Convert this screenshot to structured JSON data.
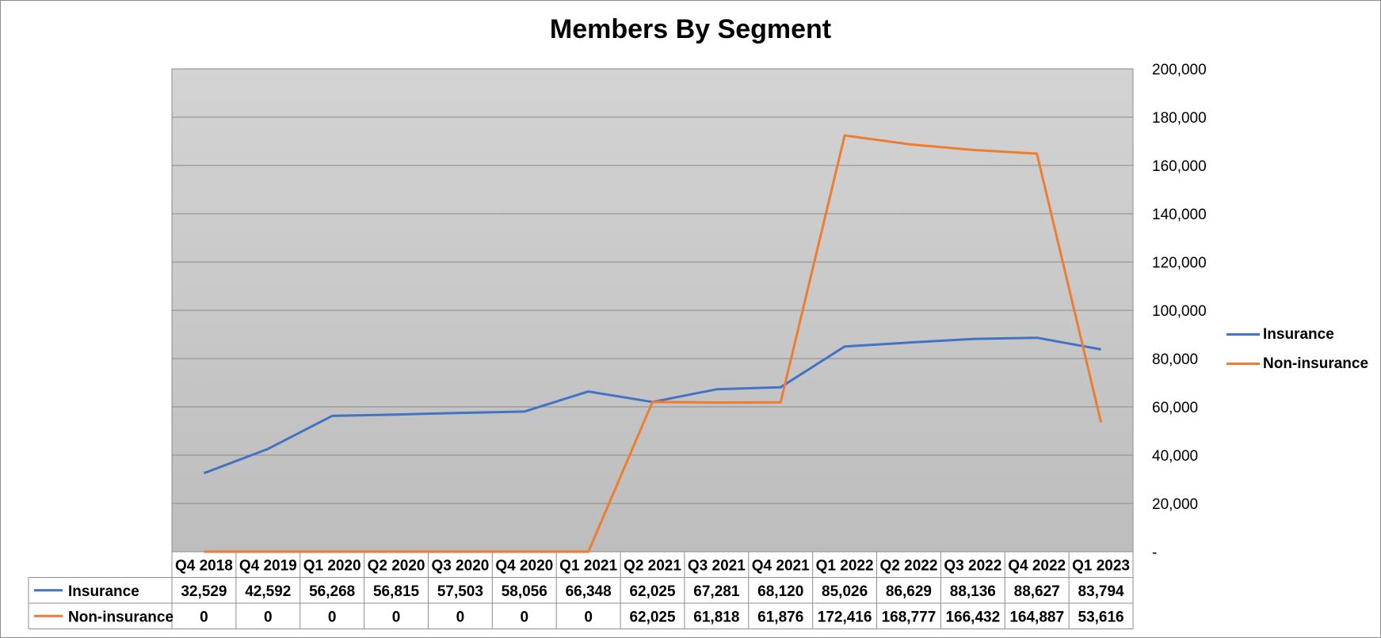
{
  "chart_data": {
    "type": "line",
    "title": "Members By Segment",
    "categories": [
      "Q4 2018",
      "Q4 2019",
      "Q1 2020",
      "Q2 2020",
      "Q3 2020",
      "Q4 2020",
      "Q1 2021",
      "Q2 2021",
      "Q3 2021",
      "Q4 2021",
      "Q1 2022",
      "Q2 2022",
      "Q3 2022",
      "Q4 2022",
      "Q1 2023"
    ],
    "series": [
      {
        "name": "Insurance",
        "color": "#4472C4",
        "values": [
          32529,
          42592,
          56268,
          56815,
          57503,
          58056,
          66348,
          62025,
          67281,
          68120,
          85026,
          86629,
          88136,
          88627,
          83794
        ],
        "labels": [
          "32,529",
          "42,592",
          "56,268",
          "56,815",
          "57,503",
          "58,056",
          "66,348",
          "62,025",
          "67,281",
          "68,120",
          "85,026",
          "86,629",
          "88,136",
          "88,627",
          "83,794"
        ]
      },
      {
        "name": "Non-insurance",
        "color": "#ED7D31",
        "values": [
          0,
          0,
          0,
          0,
          0,
          0,
          0,
          62025,
          61818,
          61876,
          172416,
          168777,
          166432,
          164887,
          53616
        ],
        "labels": [
          "0",
          "0",
          "0",
          "0",
          "0",
          "0",
          "0",
          "62,025",
          "61,818",
          "61,876",
          "172,416",
          "168,777",
          "166,432",
          "164,887",
          "53,616"
        ]
      }
    ],
    "ylim": [
      0,
      200000
    ],
    "y_ticks": [
      0,
      20000,
      40000,
      60000,
      80000,
      100000,
      120000,
      140000,
      160000,
      180000,
      200000
    ],
    "y_tick_labels": [
      "-",
      "20,000",
      "40,000",
      "60,000",
      "80,000",
      "100,000",
      "120,000",
      "140,000",
      "160,000",
      "180,000",
      "200,000"
    ],
    "y_axis_side": "right",
    "grid": true,
    "legend_position": "right",
    "data_table": true
  }
}
